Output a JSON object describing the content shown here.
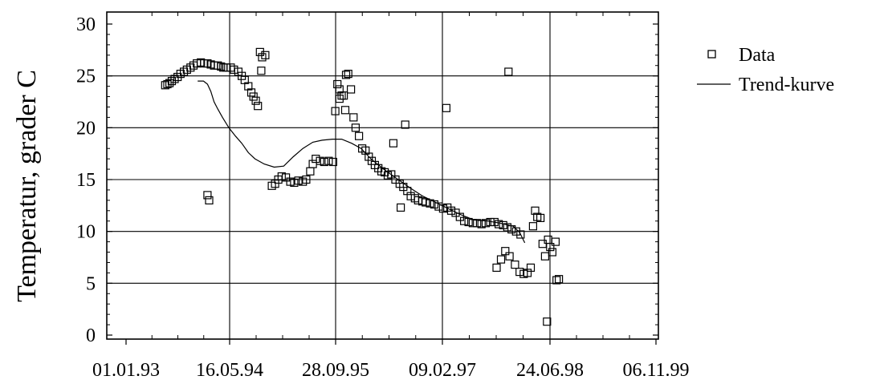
{
  "chart_data": {
    "type": "scatter",
    "ylabel": "Temperatur, grader C",
    "xlabel": "",
    "x_ticks": [
      "01.01.93",
      "16.05.94",
      "28.09.95",
      "09.02.97",
      "24.06.98",
      "06.11.99"
    ],
    "y_ticks": [
      "0",
      "5",
      "10",
      "15",
      "20",
      "25",
      "30"
    ],
    "ylim": [
      -1,
      30
    ],
    "xlim": [
      "01.01.93",
      "06.11.99"
    ],
    "grid": true,
    "legend": {
      "position": "top-right",
      "entries": [
        {
          "label": "Data",
          "marker": "square"
        },
        {
          "label": "Trend-kurve",
          "marker": "line"
        }
      ]
    },
    "series": [
      {
        "name": "Data",
        "kind": "points",
        "points": [
          [
            "1993-07-05",
            24.1
          ],
          [
            "1993-07-15",
            24.2
          ],
          [
            "1993-07-25",
            24.3
          ],
          [
            "1993-08-05",
            24.5
          ],
          [
            "1993-08-18",
            24.7
          ],
          [
            "1993-09-01",
            24.9
          ],
          [
            "1993-09-15",
            25.2
          ],
          [
            "1993-10-01",
            25.4
          ],
          [
            "1993-10-15",
            25.6
          ],
          [
            "1993-11-01",
            25.8
          ],
          [
            "1993-11-15",
            26.0
          ],
          [
            "1993-12-01",
            26.2
          ],
          [
            "1993-12-20",
            26.3
          ],
          [
            "1994-01-05",
            26.2
          ],
          [
            "1994-01-20",
            26.2
          ],
          [
            "1994-02-05",
            26.1
          ],
          [
            "1994-02-20",
            26.0
          ],
          [
            "1994-03-10",
            26.0
          ],
          [
            "1994-03-25",
            25.9
          ],
          [
            "1994-04-05",
            25.8
          ],
          [
            "1994-04-20",
            25.8
          ],
          [
            "1994-05-10",
            25.8
          ],
          [
            "1994-05-25",
            25.6
          ],
          [
            "1994-06-15",
            25.4
          ],
          [
            "1994-07-01",
            25.0
          ],
          [
            "1994-07-15",
            24.6
          ],
          [
            "1994-08-01",
            24.0
          ],
          [
            "1994-08-15",
            23.4
          ],
          [
            "1994-08-25",
            23.0
          ],
          [
            "1994-09-05",
            22.6
          ],
          [
            "1994-09-15",
            22.1
          ],
          [
            "1994-09-25",
            27.3
          ],
          [
            "1994-10-05",
            26.8
          ],
          [
            "1994-10-20",
            27.0
          ],
          [
            "1994-10-01",
            25.5
          ],
          [
            "1994-01-20",
            13.5
          ],
          [
            "1994-01-28",
            13.0
          ],
          [
            "1994-11-20",
            14.4
          ],
          [
            "1994-12-05",
            14.6
          ],
          [
            "1994-12-20",
            15.0
          ],
          [
            "1995-01-05",
            15.3
          ],
          [
            "1995-01-25",
            15.2
          ],
          [
            "1995-02-15",
            14.8
          ],
          [
            "1995-03-05",
            14.7
          ],
          [
            "1995-03-25",
            14.9
          ],
          [
            "1995-04-15",
            14.8
          ],
          [
            "1995-05-01",
            15.0
          ],
          [
            "1995-05-20",
            15.8
          ],
          [
            "1995-06-01",
            16.5
          ],
          [
            "1995-06-15",
            17.0
          ],
          [
            "1995-07-05",
            16.8
          ],
          [
            "1995-07-25",
            16.7
          ],
          [
            "1995-08-15",
            16.8
          ],
          [
            "1995-09-05",
            16.7
          ],
          [
            "1995-09-15",
            21.6
          ],
          [
            "1995-09-25",
            24.2
          ],
          [
            "1995-10-05",
            23.7
          ],
          [
            "1995-10-15",
            23.1
          ],
          [
            "1995-10-25",
            23.1
          ],
          [
            "1995-11-05",
            25.1
          ],
          [
            "1995-11-15",
            25.2
          ],
          [
            "1995-11-28",
            23.7
          ],
          [
            "1995-10-05",
            22.8
          ],
          [
            "1995-11-01",
            21.7
          ],
          [
            "1995-12-10",
            21.0
          ],
          [
            "1995-12-20",
            20.0
          ],
          [
            "1996-01-05",
            19.2
          ],
          [
            "1996-01-20",
            18.0
          ],
          [
            "1996-02-05",
            17.8
          ],
          [
            "1996-02-20",
            17.2
          ],
          [
            "1996-03-05",
            16.8
          ],
          [
            "1996-03-20",
            16.4
          ],
          [
            "1996-04-05",
            16.1
          ],
          [
            "1996-04-20",
            15.8
          ],
          [
            "1996-05-05",
            15.7
          ],
          [
            "1996-05-20",
            15.4
          ],
          [
            "1996-06-05",
            15.5
          ],
          [
            "1996-06-25",
            15.0
          ],
          [
            "1996-07-15",
            14.6
          ],
          [
            "1996-08-01",
            14.3
          ],
          [
            "1996-08-20",
            13.9
          ],
          [
            "1996-09-05",
            13.4
          ],
          [
            "1996-09-25",
            13.2
          ],
          [
            "1996-10-10",
            13.0
          ],
          [
            "1996-10-30",
            12.9
          ],
          [
            "1996-11-15",
            12.8
          ],
          [
            "1996-12-05",
            12.7
          ],
          [
            "1996-12-25",
            12.6
          ],
          [
            "1997-01-15",
            12.4
          ],
          [
            "1997-02-05",
            12.2
          ],
          [
            "1997-02-25",
            12.3
          ],
          [
            "1997-03-15",
            12.0
          ],
          [
            "1997-04-05",
            11.8
          ],
          [
            "1997-04-25",
            11.4
          ],
          [
            "1997-05-15",
            11.0
          ],
          [
            "1997-06-05",
            10.9
          ],
          [
            "1997-06-25",
            10.8
          ],
          [
            "1997-07-15",
            10.8
          ],
          [
            "1997-08-05",
            10.7
          ],
          [
            "1997-08-25",
            10.8
          ],
          [
            "1997-09-15",
            10.9
          ],
          [
            "1997-10-05",
            10.9
          ],
          [
            "1997-10-25",
            10.7
          ],
          [
            "1997-11-15",
            10.6
          ],
          [
            "1997-12-05",
            10.4
          ],
          [
            "1997-12-25",
            10.2
          ],
          [
            "1998-01-15",
            10.0
          ],
          [
            "1998-02-05",
            9.7
          ],
          [
            "1996-07-20",
            12.3
          ],
          [
            "1996-06-15",
            18.5
          ],
          [
            "1996-08-10",
            20.3
          ],
          [
            "1997-02-20",
            21.9
          ],
          [
            "1997-12-10",
            25.4
          ],
          [
            "1997-10-15",
            6.5
          ],
          [
            "1997-11-05",
            7.3
          ],
          [
            "1997-11-25",
            8.1
          ],
          [
            "1997-12-15",
            7.6
          ],
          [
            "1998-01-10",
            6.8
          ],
          [
            "1998-02-01",
            6.1
          ],
          [
            "1998-02-20",
            5.9
          ],
          [
            "1998-03-10",
            6.0
          ],
          [
            "1998-03-25",
            6.5
          ],
          [
            "1998-04-05",
            10.5
          ],
          [
            "1998-04-15",
            12.0
          ],
          [
            "1998-04-25",
            11.4
          ],
          [
            "1998-05-10",
            11.3
          ],
          [
            "1998-05-20",
            8.8
          ],
          [
            "1998-06-01",
            7.6
          ],
          [
            "1998-06-15",
            9.2
          ],
          [
            "1998-06-25",
            8.5
          ],
          [
            "1998-07-05",
            8.0
          ],
          [
            "1998-07-20",
            9.0
          ],
          [
            "1998-06-10",
            1.3
          ],
          [
            "1998-07-25",
            5.3
          ],
          [
            "1998-08-05",
            5.4
          ]
        ]
      },
      {
        "name": "Trend-kurve",
        "kind": "line",
        "points": [
          [
            "1993-12-05",
            24.5
          ],
          [
            "1994-01-01",
            24.5
          ],
          [
            "1994-01-20",
            24.2
          ],
          [
            "1994-02-05",
            23.5
          ],
          [
            "1994-02-20",
            22.5
          ],
          [
            "1994-03-10",
            21.8
          ],
          [
            "1994-04-01",
            21.0
          ],
          [
            "1994-05-01",
            20.0
          ],
          [
            "1994-06-01",
            19.2
          ],
          [
            "1994-07-01",
            18.5
          ],
          [
            "1994-08-01",
            17.6
          ],
          [
            "1994-09-01",
            17.0
          ],
          [
            "1994-10-15",
            16.5
          ],
          [
            "1994-12-01",
            16.2
          ],
          [
            "1995-01-15",
            16.3
          ],
          [
            "1995-03-01",
            17.2
          ],
          [
            "1995-04-15",
            18.0
          ],
          [
            "1995-06-01",
            18.6
          ],
          [
            "1995-07-15",
            18.8
          ],
          [
            "1995-09-01",
            18.9
          ],
          [
            "1995-10-15",
            18.9
          ],
          [
            "1995-12-01",
            18.5
          ],
          [
            "1996-01-15",
            18.0
          ],
          [
            "1996-03-01",
            17.0
          ],
          [
            "1996-05-01",
            16.0
          ],
          [
            "1996-07-01",
            15.1
          ],
          [
            "1996-09-01",
            14.2
          ],
          [
            "1996-11-01",
            13.4
          ],
          [
            "1997-01-01",
            12.8
          ],
          [
            "1997-03-01",
            12.2
          ],
          [
            "1997-05-01",
            11.6
          ],
          [
            "1997-07-01",
            11.1
          ],
          [
            "1997-09-01",
            11.0
          ],
          [
            "1997-11-01",
            10.8
          ],
          [
            "1998-01-01",
            10.5
          ],
          [
            "1998-02-01",
            9.9
          ],
          [
            "1998-02-25",
            8.9
          ]
        ]
      }
    ]
  }
}
